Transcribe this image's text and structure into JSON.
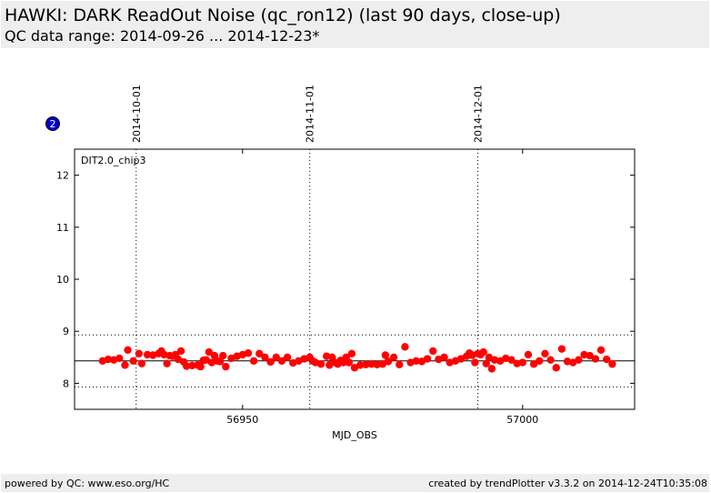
{
  "header": {
    "title": "HAWKI: DARK ReadOut Noise (qc_ron12) (last 90 days, close-up)",
    "subtitle": "QC data range: 2014-09-26 ... 2014-12-23*"
  },
  "badge": {
    "label": "2",
    "color": "#0000cc"
  },
  "footer": {
    "left": "powered by QC: www.eso.org/HC",
    "right": "created by trendPlotter v3.3.2 on 2014-12-24T10:35:08"
  },
  "chart_data": {
    "type": "scatter",
    "panel_label": "DIT2.0_chip3",
    "xlabel": "MJD_OBS",
    "ylabel": "",
    "xlim": [
      56920,
      57020
    ],
    "ylim": [
      7.5,
      12.5
    ],
    "xticks": [
      56950,
      57000
    ],
    "yticks": [
      8,
      9,
      10,
      11,
      12
    ],
    "date_markers": [
      {
        "x": 56931,
        "label": "2014-10-01"
      },
      {
        "x": 56962,
        "label": "2014-11-01"
      },
      {
        "x": 56992,
        "label": "2014-12-01"
      }
    ],
    "reference_line": 8.43,
    "limit_lines": [
      7.93,
      8.93
    ],
    "point_color": "#ff0000",
    "series": [
      {
        "x": [
          56925,
          56926,
          56927,
          56928,
          56929,
          56929.5,
          56930.5,
          56931.5,
          56932,
          56933,
          56934,
          56935,
          56935.5,
          56936,
          56936.5,
          56937,
          56937.5,
          56938,
          56938.5,
          56939,
          56939.5,
          56940,
          56941,
          56942,
          56942.5,
          56943,
          56943.5,
          56944,
          56944.5,
          56945,
          56945.5,
          56946,
          56946.5,
          56947,
          56948,
          56949,
          56950,
          56951,
          56952,
          56953,
          56954,
          56955,
          56956,
          56957,
          56958,
          56959,
          56960,
          56961,
          56962,
          56962.5,
          56963,
          56964,
          56965,
          56965.5,
          56966,
          56966.5,
          56967,
          56967.5,
          56968,
          56968.5,
          56969,
          56969.5,
          56970,
          56971,
          56972,
          56973,
          56974,
          56975,
          56975.5,
          56976,
          56977,
          56978,
          56979,
          56980,
          56981,
          56982,
          56983,
          56984,
          56985,
          56986,
          56987,
          56988,
          56989,
          56990,
          56990.5,
          56991,
          56991.5,
          56992,
          56992.5,
          56993,
          56993.5,
          56994,
          56994.5,
          56995,
          56996,
          56997,
          56998,
          56999,
          57000,
          57001,
          57002,
          57003,
          57004,
          57005,
          57006,
          57007,
          57008,
          57009,
          57010,
          57011,
          57012,
          57013,
          57014,
          57015,
          57016
        ],
        "y": [
          8.43,
          8.46,
          8.45,
          8.48,
          8.35,
          8.64,
          8.43,
          8.57,
          8.38,
          8.55,
          8.54,
          8.57,
          8.62,
          8.55,
          8.38,
          8.53,
          8.52,
          8.55,
          8.46,
          8.62,
          8.41,
          8.33,
          8.34,
          8.35,
          8.32,
          8.44,
          8.45,
          8.6,
          8.4,
          8.53,
          8.43,
          8.42,
          8.53,
          8.32,
          8.48,
          8.52,
          8.55,
          8.58,
          8.43,
          8.57,
          8.5,
          8.41,
          8.5,
          8.43,
          8.5,
          8.39,
          8.43,
          8.47,
          8.5,
          8.43,
          8.4,
          8.37,
          8.52,
          8.35,
          8.5,
          8.4,
          8.37,
          8.44,
          8.4,
          8.5,
          8.4,
          8.57,
          8.3,
          8.35,
          8.36,
          8.37,
          8.36,
          8.37,
          8.54,
          8.42,
          8.5,
          8.36,
          8.7,
          8.4,
          8.43,
          8.42,
          8.47,
          8.62,
          8.46,
          8.5,
          8.4,
          8.43,
          8.47,
          8.52,
          8.58,
          8.54,
          8.4,
          8.57,
          8.55,
          8.6,
          8.38,
          8.5,
          8.28,
          8.45,
          8.43,
          8.48,
          8.45,
          8.38,
          8.4,
          8.55,
          8.37,
          8.43,
          8.57,
          8.45,
          8.3,
          8.66,
          8.42,
          8.4,
          8.45,
          8.55,
          8.53,
          8.47,
          8.64,
          8.46,
          8.37
        ]
      }
    ]
  }
}
